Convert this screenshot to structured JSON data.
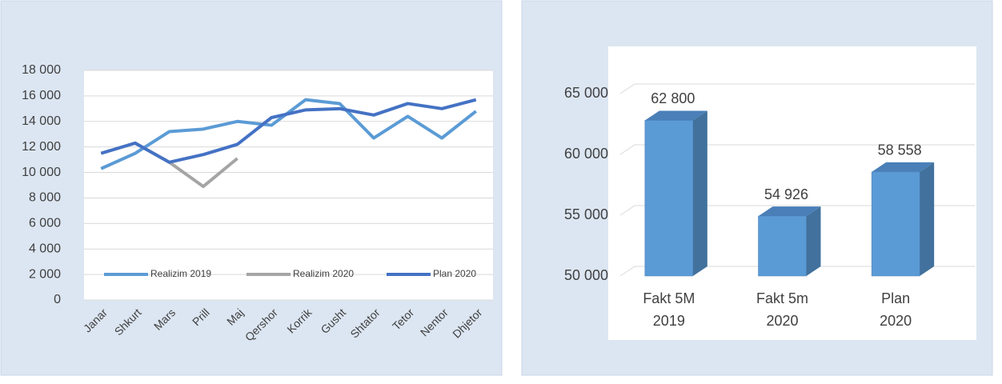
{
  "chart_data": [
    {
      "type": "line",
      "categories": [
        "Janar",
        "Shkurt",
        "Mars",
        "Prill",
        "Maj",
        "Qershor",
        "Korrik",
        "Gusht",
        "Shtator",
        "Tetor",
        "Nentor",
        "Dhjetor"
      ],
      "series": [
        {
          "name": "Realizim 2019",
          "color": "#5b9bd5",
          "values": [
            10300,
            11500,
            13200,
            13400,
            14000,
            13700,
            15700,
            15400,
            12700,
            14400,
            12700,
            14800
          ]
        },
        {
          "name": "Realizim 2020",
          "color": "#a5a5a5",
          "values": [
            11500,
            12300,
            10800,
            8900,
            11100,
            null,
            null,
            null,
            null,
            null,
            null,
            null
          ]
        },
        {
          "name": "Plan 2020",
          "color": "#4472c4",
          "values": [
            11500,
            12300,
            10800,
            11400,
            12200,
            14300,
            14900,
            15000,
            14500,
            15400,
            15000,
            15700
          ]
        }
      ],
      "ylim": [
        0,
        18000
      ],
      "yticks": [
        0,
        {
          "value": 2000,
          "label": "2 000"
        },
        {
          "value": 4000,
          "label": "4 000"
        },
        {
          "value": 6000,
          "label": "6 000"
        },
        {
          "value": 8000,
          "label": "8 000"
        },
        {
          "value": 10000,
          "label": "10 000"
        },
        {
          "value": 12000,
          "label": "12 000"
        },
        {
          "value": 14000,
          "label": "14 000"
        },
        {
          "value": 16000,
          "label": "16 000"
        },
        {
          "value": 18000,
          "label": "18 000"
        }
      ],
      "grid": true,
      "legend": "bottom"
    },
    {
      "type": "bar3d",
      "categories": [
        "Fakt 5M 2019",
        "Fakt 5m 2020",
        "Plan 2020"
      ],
      "values": [
        62800,
        54926,
        58558
      ],
      "value_labels": [
        "62 800",
        "54 926",
        "58 558"
      ],
      "color": "#5b9bd5",
      "ylim": [
        50000,
        65000
      ],
      "yticks": [
        {
          "value": 50000,
          "label": "50 000"
        },
        {
          "value": 55000,
          "label": "55 000"
        },
        {
          "value": 60000,
          "label": "60 000"
        },
        {
          "value": 65000,
          "label": "65 000"
        }
      ],
      "grid": true
    }
  ]
}
